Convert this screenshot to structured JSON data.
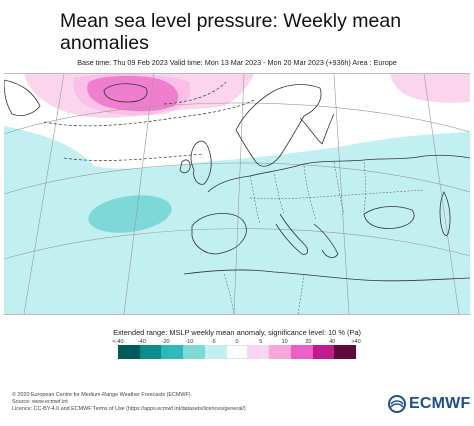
{
  "header": {
    "title": "Mean sea level pressure: Weekly mean anomalies",
    "subtitle": "Base time: Thu 09 Feb 2023 Valid time: Mon 13 Mar 2023 - Mon 20 Mar 2023 (+936h) Area : Europe"
  },
  "legend": {
    "title": "Extended range: MSLP weekly mean anomaly, significance level: 10 % (Pa)",
    "ticks": [
      "<-40",
      "-40",
      "-20",
      "-10",
      "-5",
      "0",
      "5",
      "10",
      "20",
      "40",
      ">40"
    ],
    "colors": [
      "#005a5a",
      "#0b8c8c",
      "#31b8b8",
      "#7fd8d8",
      "#c2f0f0",
      "#ffffff",
      "#fbd4ee",
      "#f6a6dc",
      "#ea60c4",
      "#c21a8c",
      "#5c0a3c"
    ]
  },
  "footer": {
    "line1": "© 2020 European Centre for Medium-Range Weather Forecasts (ECMWF)",
    "line2": "Source: www.ecmwf.int",
    "line3": "Licence: CC-BY-4.0 and ECMWF Terms of Use (https://apps.ecmwf.int/datasets/licences/general/)"
  },
  "logo": {
    "text": "ECMWF",
    "color": "#1d4f91"
  },
  "map": {
    "ocean_anomaly_color": "#c2f0f0",
    "strong_negative_color": "#7fd8d8",
    "positive_color": "#fbd4ee",
    "strong_positive_color": "#ea60c4"
  }
}
